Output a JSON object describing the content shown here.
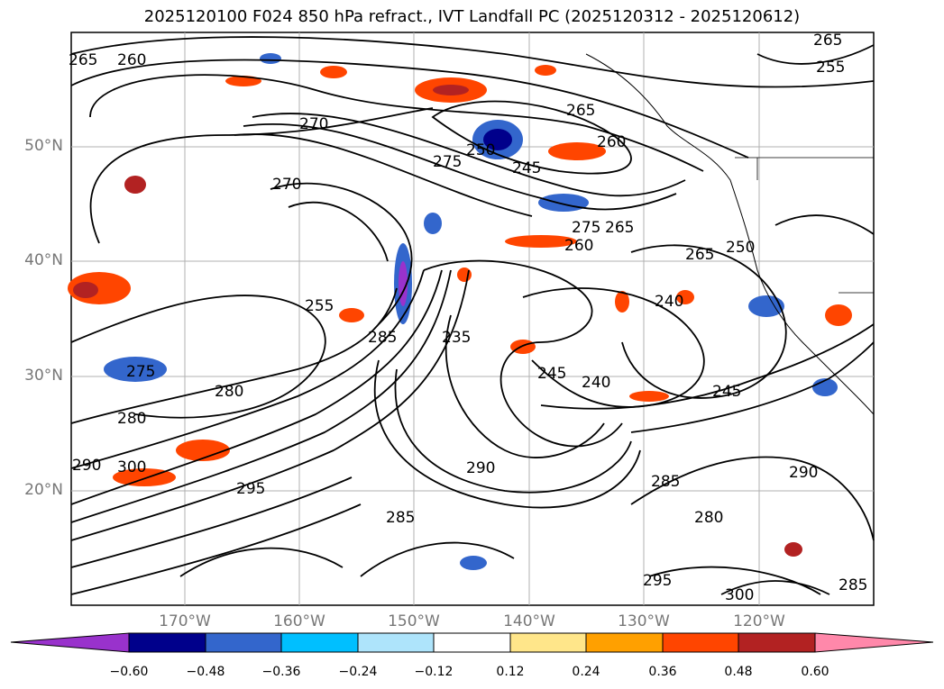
{
  "title": "2025120100 F024 850 hPa refract., IVT Landfall PC (2025120312 - 2025120612)",
  "lat_labels": [
    "50°N",
    "40°N",
    "30°N",
    "20°N"
  ],
  "lon_labels": [
    "170°W",
    "160°W",
    "150°W",
    "140°W",
    "130°W",
    "120°W"
  ],
  "colorbar": {
    "ticks": [
      "−0.60",
      "−0.48",
      "−0.36",
      "−0.24",
      "−0.12",
      "0.12",
      "0.24",
      "0.36",
      "0.48",
      "0.60"
    ],
    "colors": [
      "#9932cc",
      "#00008b",
      "#3366cc",
      "#00bfff",
      "#aee4fb",
      "#ffffff",
      "#ffe68a",
      "#ffa000",
      "#ff4500",
      "#b22222",
      "#ff88aa"
    ]
  },
  "contour_labels": [
    "265",
    "265",
    "260",
    "255",
    "270",
    "265",
    "250",
    "245",
    "260",
    "275",
    "270",
    "265",
    "275",
    "260",
    "265",
    "250",
    "240",
    "255",
    "285",
    "275",
    "280",
    "280",
    "245",
    "240",
    "245",
    "235",
    "290",
    "300",
    "285",
    "280",
    "295",
    "290",
    "285",
    "295",
    "300",
    "290",
    "285"
  ]
}
